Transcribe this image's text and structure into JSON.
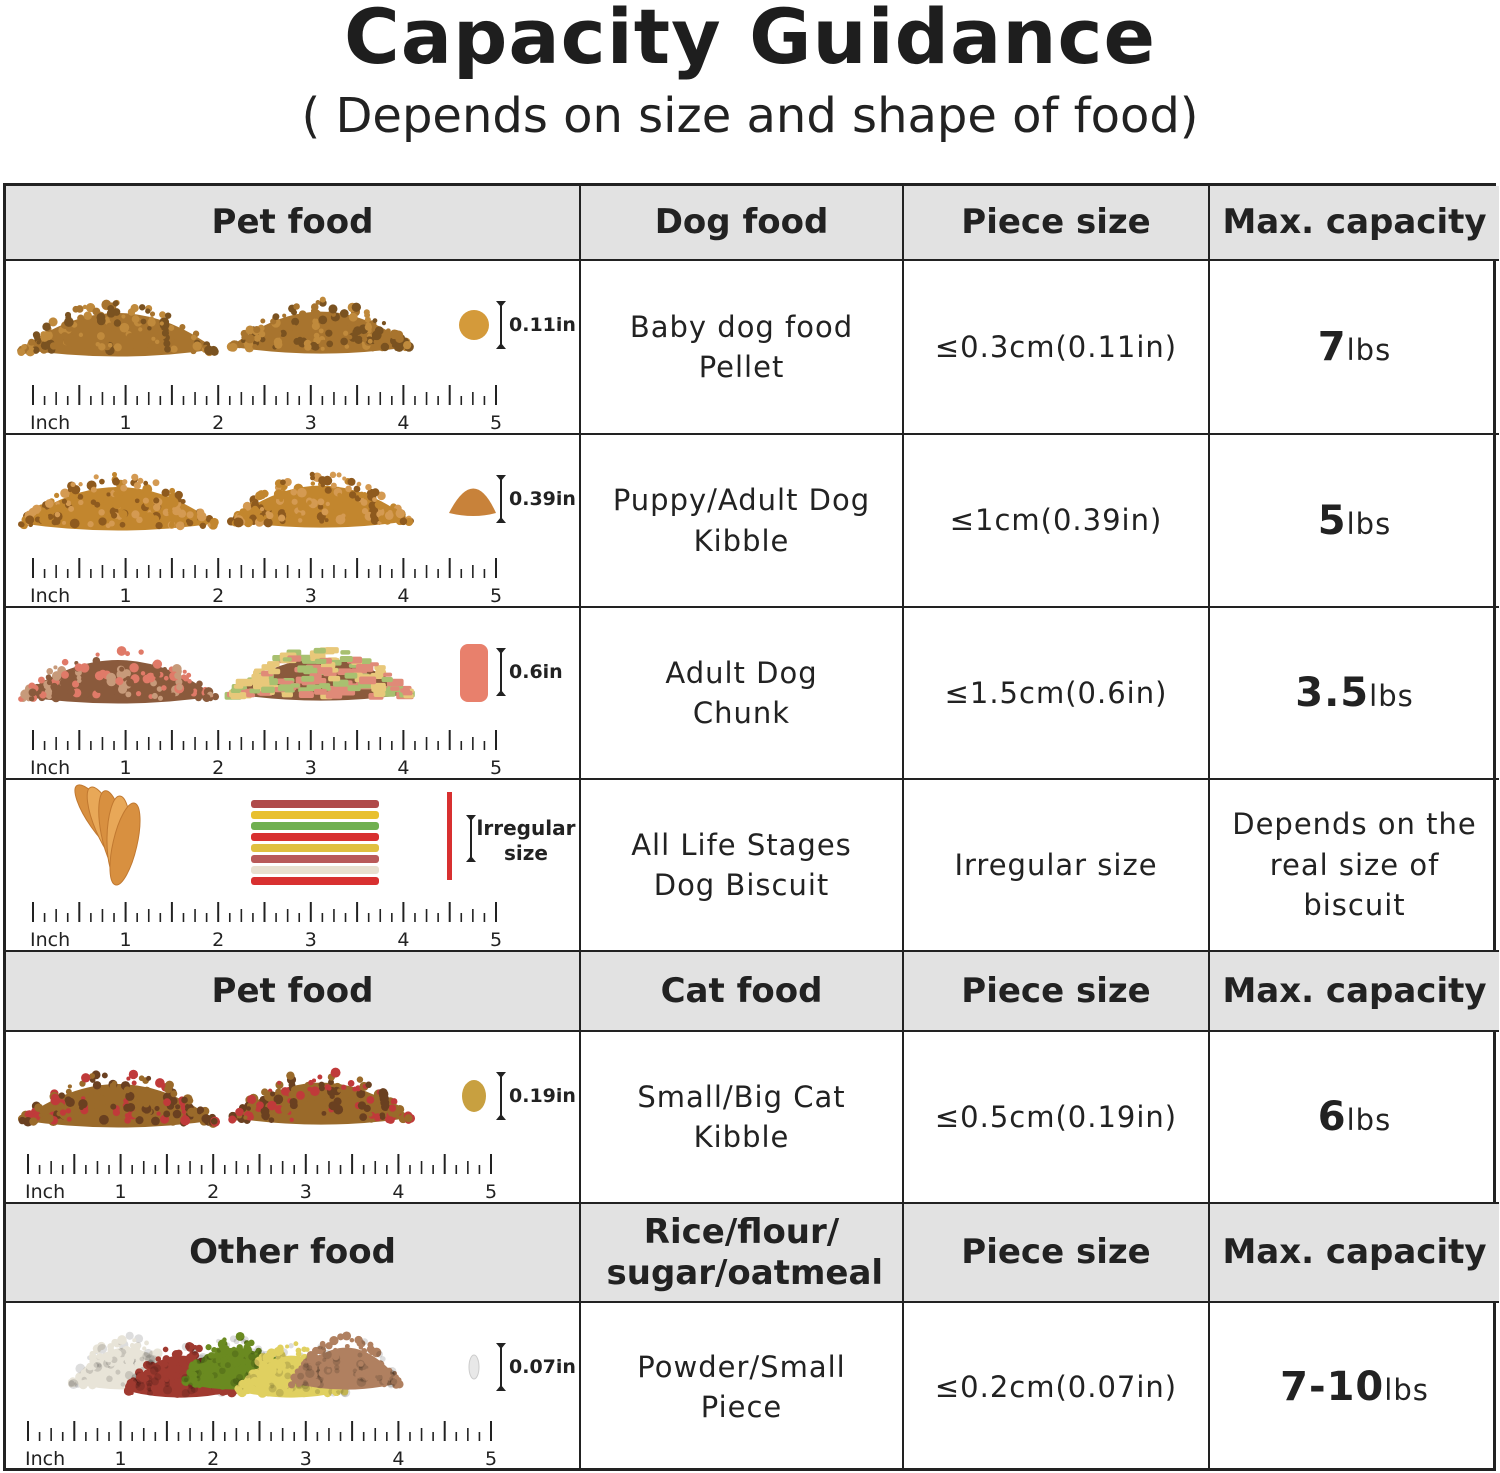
{
  "title": "Capacity Guidance",
  "subtitle": "( Depends on size and shape of food)",
  "ruler": {
    "unit_label": "Inch",
    "numbers": [
      "1",
      "2",
      "3",
      "4",
      "5"
    ]
  },
  "sections": [
    {
      "header": [
        "Pet food",
        "Dog food",
        "Piece size",
        "Max. capacity"
      ],
      "rows": [
        {
          "measure": "0.11in",
          "name": "Baby dog food Pellet",
          "size": "≤0.3cm(0.11in)",
          "cap_value": "7",
          "cap_unit": "lbs",
          "visual": {
            "left": "pile",
            "right": "pile",
            "piece": "round",
            "colors": [
              "#a8742e",
              "#c08a3c",
              "#7a5220"
            ]
          }
        },
        {
          "measure": "0.39in",
          "name": "Puppy/Adult Dog Kibble",
          "size": "≤1cm(0.39in)",
          "cap_value": "5",
          "cap_unit": "lbs",
          "visual": {
            "left": "pile",
            "right": "pile",
            "piece": "triangle",
            "colors": [
              "#c2862e",
              "#d49a52",
              "#8e5a1e"
            ]
          }
        },
        {
          "measure": "0.6in",
          "name": "Adult Dog Chunk",
          "size": "≤1.5cm(0.6in)",
          "cap_value": "3.5",
          "cap_unit": "lbs",
          "visual": {
            "left": "pile",
            "right": "biscuits",
            "piece": "bone",
            "colors": [
              "#8a5a3c",
              "#c79a7a",
              "#e07a68"
            ]
          }
        },
        {
          "measure": "lrregular size",
          "name": "All Life Stages Dog Biscuit",
          "size": "Irregular size",
          "cap_text": "Depends on the real size of biscuit",
          "visual": {
            "left": "jerky",
            "right": "sticks",
            "piece": "stick",
            "colors": [
              "#e0a050",
              "#d43030",
              "#e8c840"
            ]
          }
        }
      ]
    },
    {
      "header": [
        "Pet food",
        "Cat food",
        "Piece size",
        "Max. capacity"
      ],
      "rows": [
        {
          "measure": "0.19in",
          "name": "Small/Big Cat Kibble",
          "size": "≤0.5cm(0.19in)",
          "cap_value": "6",
          "cap_unit": "lbs",
          "visual": {
            "left": "pile",
            "right": "pile",
            "piece": "oval",
            "colors": [
              "#9a6a2a",
              "#6a4020",
              "#c03a3a"
            ]
          }
        }
      ]
    },
    {
      "header": [
        "Other food",
        "Rice/flour/ sugar/oatmeal",
        "Piece size",
        "Max. capacity"
      ],
      "rows": [
        {
          "measure": "0.07in",
          "name": "Powder/Small Piece",
          "size": "≤0.2cm(0.07in)",
          "cap_value": "7-10",
          "cap_unit": "lbs",
          "visual": {
            "left": "grains",
            "right": "none",
            "piece": "grain",
            "colors": [
              "#6a8a20",
              "#a03a30",
              "#e0d060"
            ]
          }
        }
      ]
    }
  ]
}
